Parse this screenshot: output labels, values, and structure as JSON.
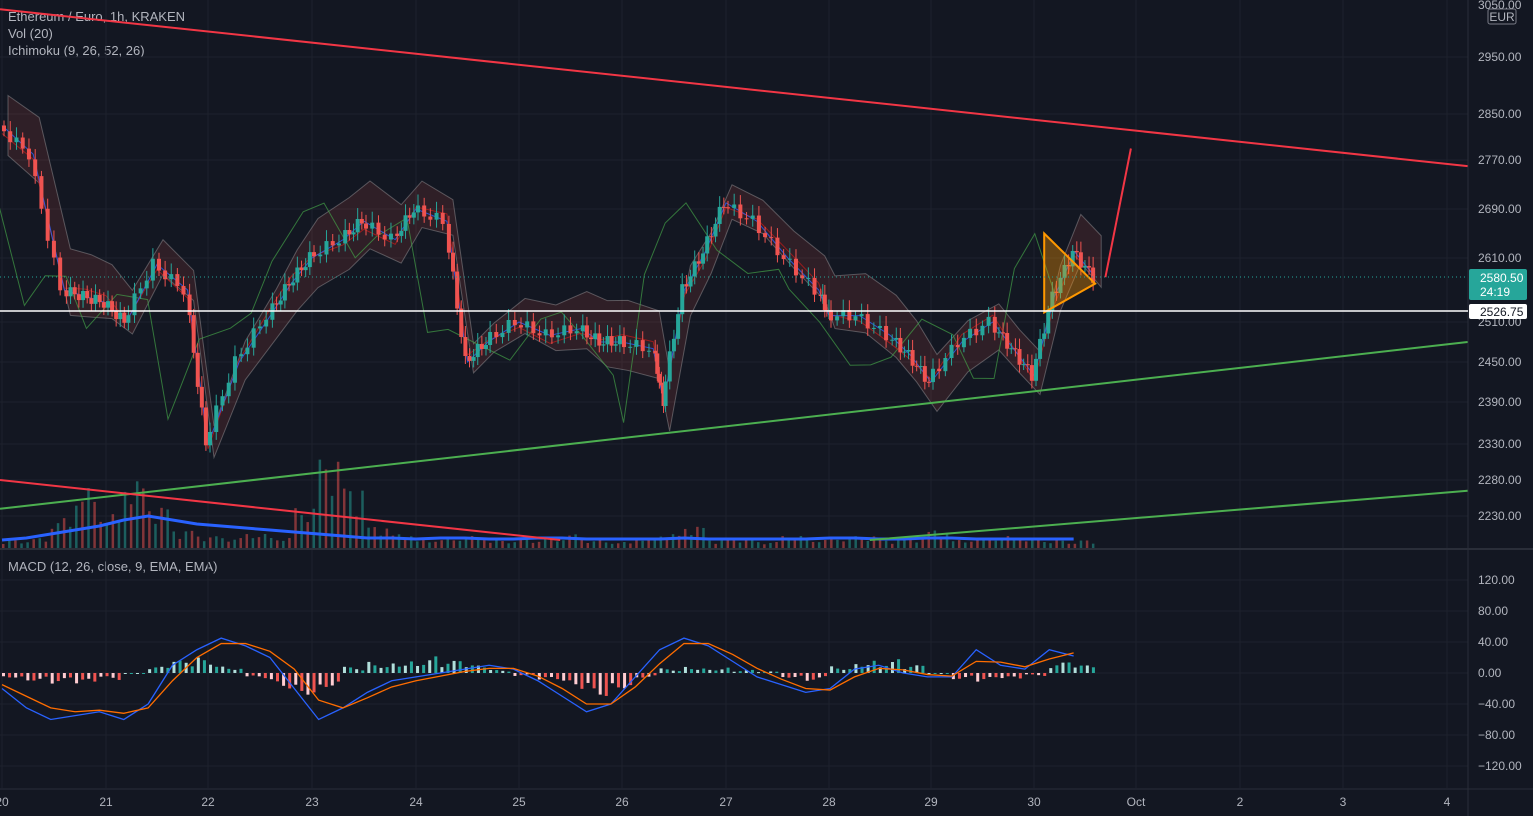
{
  "header": {
    "title": "Ethereum / Euro, 1h, KRAKEN",
    "volume_legend": "Vol (20)",
    "ichimoku_legend": "Ichimoku (9, 26, 52, 26)",
    "macd_legend": "MACD (12, 26, close, 9, EMA, EMA)"
  },
  "colors": {
    "background": "#131722",
    "grid": "#1e222d",
    "up_candle": "#26a69a",
    "down_candle": "#ef5350",
    "trendline_red": "#f23645",
    "trendline_green": "#4caf50",
    "pattern_orange": "#ff9800",
    "volume_ma": "#2962ff",
    "macd_line": "#2962ff",
    "signal_line": "#ff6d00",
    "last_price_tag": "#26a69a",
    "level_tag": "#ffffff"
  },
  "price_scale": {
    "currency": "EUR",
    "top_label": "3050.00",
    "last_price": "2580.50",
    "countdown": "24:19",
    "horizontal_level": "2526.75"
  },
  "chart_data": [
    {
      "type": "candlestick",
      "title": "Ethereum / Euro, 1h, KRAKEN",
      "x_ticks": [
        "20",
        "21",
        "22",
        "23",
        "24",
        "25",
        "26",
        "27",
        "28",
        "29",
        "30",
        "Oct",
        "2",
        "3",
        "4"
      ],
      "y_ticks": [
        2230,
        2280,
        2330,
        2390,
        2450,
        2510,
        2610,
        2690,
        2770,
        2850,
        2950
      ],
      "ylim": [
        2205,
        3050
      ],
      "price_path": [
        [
          "20",
          2830
        ],
        [
          "20.3",
          2780
        ],
        [
          "20.6",
          2560
        ],
        [
          "20.8",
          2550
        ],
        [
          "21",
          2540
        ],
        [
          "21.2",
          2510
        ],
        [
          "21.5",
          2600
        ],
        [
          "21.8",
          2560
        ],
        [
          "22",
          2330
        ],
        [
          "22.3",
          2450
        ],
        [
          "22.6",
          2520
        ],
        [
          "22.8",
          2570
        ],
        [
          "23",
          2610
        ],
        [
          "23.3",
          2640
        ],
        [
          "23.5",
          2670
        ],
        [
          "23.8",
          2640
        ],
        [
          "24",
          2690
        ],
        [
          "24.3",
          2670
        ],
        [
          "24.5",
          2450
        ],
        [
          "24.7",
          2480
        ],
        [
          "25",
          2510
        ],
        [
          "25.3",
          2490
        ],
        [
          "25.6",
          2500
        ],
        [
          "25.8",
          2480
        ],
        [
          "26",
          2480
        ],
        [
          "26.3",
          2470
        ],
        [
          "26.4",
          2390
        ],
        [
          "26.6",
          2560
        ],
        [
          "26.8",
          2620
        ],
        [
          "27",
          2700
        ],
        [
          "27.3",
          2670
        ],
        [
          "27.6",
          2610
        ],
        [
          "27.9",
          2560
        ],
        [
          "28",
          2520
        ],
        [
          "28.3",
          2520
        ],
        [
          "28.6",
          2490
        ],
        [
          "28.8",
          2460
        ],
        [
          "29",
          2420
        ],
        [
          "29.3",
          2480
        ],
        [
          "29.6",
          2510
        ],
        [
          "29.8",
          2470
        ],
        [
          "30",
          2430
        ],
        [
          "30.2",
          2550
        ],
        [
          "30.4",
          2620
        ],
        [
          "30.6",
          2580
        ]
      ],
      "resistance_line": [
        [
          "19.9",
          3040
        ],
        [
          "4.2",
          2760
        ]
      ],
      "support_line": [
        [
          "19.9",
          2240
        ],
        [
          "4.2",
          2480
        ]
      ],
      "lower_support_line": [
        [
          "28.4",
          2205
        ],
        [
          "4.2",
          2265
        ]
      ],
      "lower_red_line": [
        [
          "19.9",
          2280
        ],
        [
          "25.4",
          2205
        ]
      ],
      "triangle": [
        [
          "30.1",
          2650
        ],
        [
          "30.6",
          2570
        ],
        [
          "30.1",
          2525
        ]
      ],
      "projection_arrow": [
        [
          "30.7",
          2580
        ],
        [
          "30.95",
          2790
        ]
      ]
    },
    {
      "type": "bar",
      "title": "Vol (20)",
      "series": [
        {
          "values": [
            8,
            10,
            30,
            60,
            34,
            68,
            42,
            18,
            12,
            10,
            14,
            10,
            40,
            90,
            62,
            22,
            14,
            8,
            10,
            12,
            8,
            10,
            12,
            14,
            8,
            6,
            10,
            14,
            22,
            8,
            10,
            6,
            12,
            8,
            10,
            12,
            8,
            10,
            18,
            8,
            10,
            12,
            10,
            8,
            8
          ]
        }
      ],
      "volume_ma_path": [
        8,
        10,
        14,
        18,
        22,
        28,
        32,
        28,
        24,
        22,
        20,
        18,
        16,
        14,
        12,
        10,
        10,
        9,
        10,
        10,
        9,
        9,
        10,
        10,
        9,
        9,
        9,
        9,
        10,
        9,
        9,
        9,
        9,
        9,
        10,
        10,
        9,
        9,
        10,
        10,
        9,
        9,
        9,
        9,
        9
      ]
    },
    {
      "type": "bar",
      "title": "MACD (12, 26, close, 9, EMA, EMA)",
      "y_ticks": [
        120,
        80,
        40,
        0,
        -40,
        -80,
        -120
      ],
      "ylim": [
        -130,
        130
      ],
      "series": [
        {
          "name": "Histogram",
          "values": [
            -6,
            -10,
            -14,
            -18,
            -10,
            0,
            8,
            16,
            20,
            10,
            -8,
            -20,
            -28,
            -18,
            8,
            16,
            20,
            22,
            16,
            10,
            4,
            -4,
            -12,
            -22,
            -30,
            -20,
            -6,
            6,
            10,
            8,
            4,
            2,
            -6,
            -10,
            10,
            20,
            18,
            10,
            0,
            -8,
            -12,
            -10,
            -4,
            14,
            10
          ]
        },
        {
          "name": "MACD",
          "values": [
            -20,
            -45,
            -60,
            -55,
            -50,
            -60,
            -40,
            10,
            30,
            45,
            35,
            20,
            -20,
            -60,
            -45,
            -25,
            -10,
            -5,
            0,
            5,
            10,
            5,
            -10,
            -30,
            -50,
            -40,
            -5,
            30,
            45,
            35,
            15,
            -5,
            -15,
            -25,
            -20,
            5,
            10,
            0,
            -5,
            -5,
            30,
            10,
            5,
            30,
            22
          ]
        },
        {
          "name": "Signal",
          "values": [
            -15,
            -30,
            -45,
            -50,
            -48,
            -52,
            -45,
            -10,
            20,
            38,
            38,
            28,
            5,
            -35,
            -45,
            -32,
            -18,
            -10,
            -4,
            2,
            6,
            6,
            -4,
            -20,
            -40,
            -40,
            -18,
            12,
            38,
            38,
            24,
            6,
            -8,
            -20,
            -22,
            -5,
            6,
            4,
            -2,
            -4,
            15,
            14,
            8,
            18,
            26
          ]
        }
      ]
    }
  ]
}
